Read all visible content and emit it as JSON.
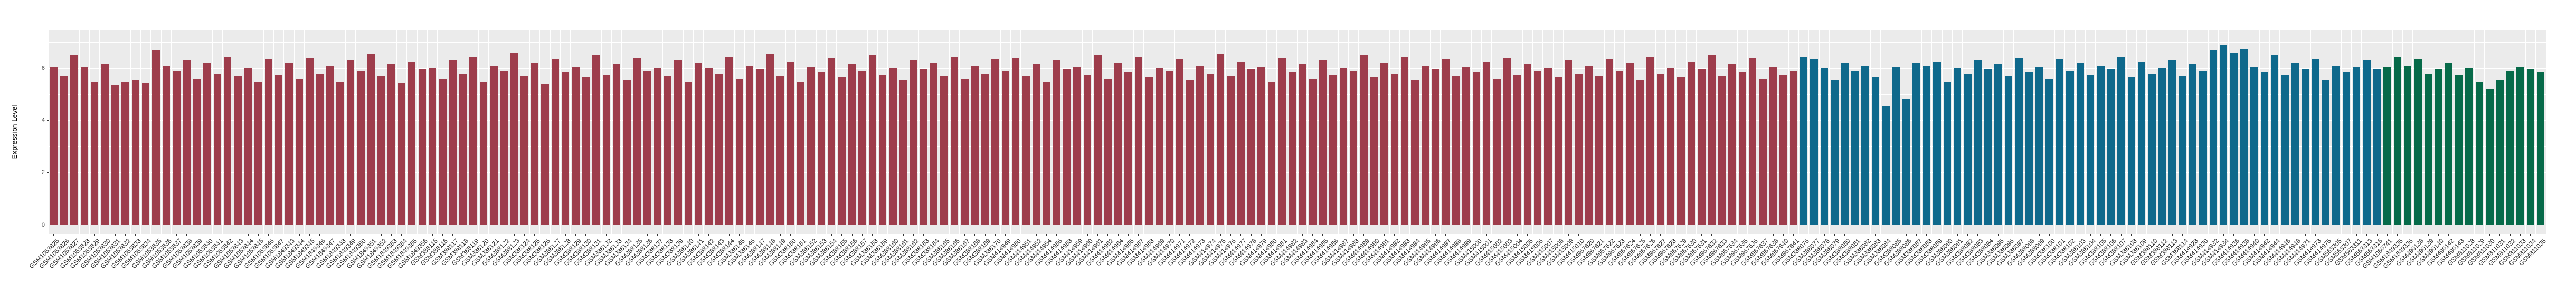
{
  "chart_data": {
    "type": "bar",
    "title": "",
    "xlabel": "",
    "ylabel": "Expression Level",
    "ylim": [
      -0.35,
      7.47
    ],
    "y_major_ticks": [
      0,
      2,
      4,
      6
    ],
    "y_minor_ticks": [
      1,
      3,
      5,
      7
    ],
    "legend": "none",
    "grid": "on",
    "panel_bg": "#ebebeb",
    "grid_color": "#ffffff",
    "groups": [
      {
        "name": "group-1-red",
        "color": "#9E3D4C",
        "from": 0,
        "to": 170
      },
      {
        "name": "group-2-blue",
        "color": "#0F698C",
        "from": 171,
        "to": 227
      },
      {
        "name": "group-3-green",
        "color": "#076A49",
        "from": 228,
        "to": 243
      }
    ],
    "categories": [
      "GSM1053825",
      "GSM1053826",
      "GSM1053827",
      "GSM1053828",
      "GSM1053829",
      "GSM1053830",
      "GSM1053831",
      "GSM1053832",
      "GSM1053833",
      "GSM1053834",
      "GSM1053835",
      "GSM1053836",
      "GSM1053837",
      "GSM1053838",
      "GSM1053839",
      "GSM1053840",
      "GSM1053841",
      "GSM1053842",
      "GSM1053843",
      "GSM1053844",
      "GSM1053845",
      "GSM1053846",
      "GSM1053847",
      "GSM1849343",
      "GSM1849344",
      "GSM1849345",
      "GSM1849346",
      "GSM1849347",
      "GSM1849348",
      "GSM1849349",
      "GSM1849350",
      "GSM1849351",
      "GSM1849352",
      "GSM1849353",
      "GSM1849354",
      "GSM1849355",
      "GSM1849356",
      "GSM388115",
      "GSM388116",
      "GSM388117",
      "GSM388118",
      "GSM388119",
      "GSM388120",
      "GSM388121",
      "GSM388122",
      "GSM388123",
      "GSM388124",
      "GSM388125",
      "GSM388126",
      "GSM388127",
      "GSM388128",
      "GSM388129",
      "GSM388130",
      "GSM388131",
      "GSM388132",
      "GSM388133",
      "GSM388134",
      "GSM388135",
      "GSM388136",
      "GSM388137",
      "GSM388138",
      "GSM388139",
      "GSM388140",
      "GSM388141",
      "GSM388142",
      "GSM388143",
      "GSM388144",
      "GSM388145",
      "GSM388146",
      "GSM388147",
      "GSM388148",
      "GSM388149",
      "GSM388150",
      "GSM388151",
      "GSM388152",
      "GSM388153",
      "GSM388154",
      "GSM388155",
      "GSM388156",
      "GSM388157",
      "GSM388158",
      "GSM388159",
      "GSM388160",
      "GSM388161",
      "GSM388162",
      "GSM388163",
      "GSM388164",
      "GSM388165",
      "GSM388166",
      "GSM388167",
      "GSM388168",
      "GSM388169",
      "GSM388170",
      "GSM414949",
      "GSM414950",
      "GSM414951",
      "GSM414952",
      "GSM414954",
      "GSM414956",
      "GSM414958",
      "GSM414959",
      "GSM414960",
      "GSM414961",
      "GSM414962",
      "GSM414964",
      "GSM414965",
      "GSM414967",
      "GSM414968",
      "GSM414969",
      "GSM414970",
      "GSM414971",
      "GSM414972",
      "GSM414973",
      "GSM414974",
      "GSM414975",
      "GSM414976",
      "GSM414977",
      "GSM414978",
      "GSM414979",
      "GSM414980",
      "GSM414981",
      "GSM414982",
      "GSM414983",
      "GSM414984",
      "GSM414985",
      "GSM414986",
      "GSM414987",
      "GSM414988",
      "GSM414989",
      "GSM414990",
      "GSM414991",
      "GSM414992",
      "GSM414993",
      "GSM414994",
      "GSM414995",
      "GSM414996",
      "GSM414997",
      "GSM414998",
      "GSM414999",
      "GSM415000",
      "GSM415001",
      "GSM415002",
      "GSM415003",
      "GSM415004",
      "GSM415005",
      "GSM415006",
      "GSM415007",
      "GSM415008",
      "GSM415009",
      "GSM415010",
      "GSM967620",
      "GSM967621",
      "GSM967622",
      "GSM967623",
      "GSM967624",
      "GSM967625",
      "GSM967626",
      "GSM967627",
      "GSM967628",
      "GSM967629",
      "GSM967630",
      "GSM967631",
      "GSM967632",
      "GSM967633",
      "GSM967634",
      "GSM967635",
      "GSM967636",
      "GSM967637",
      "GSM967638",
      "GSM967640",
      "GSM967641",
      "GSM388076",
      "GSM388077",
      "GSM388078",
      "GSM388079",
      "GSM388080",
      "GSM388081",
      "GSM388082",
      "GSM388083",
      "GSM388084",
      "GSM388085",
      "GSM388086",
      "GSM388087",
      "GSM388088",
      "GSM388089",
      "GSM388090",
      "GSM388091",
      "GSM388092",
      "GSM388093",
      "GSM388094",
      "GSM388095",
      "GSM388096",
      "GSM388097",
      "GSM388098",
      "GSM388099",
      "GSM388100",
      "GSM388101",
      "GSM388102",
      "GSM388103",
      "GSM388104",
      "GSM388105",
      "GSM388106",
      "GSM388107",
      "GSM388108",
      "GSM388109",
      "GSM388110",
      "GSM388112",
      "GSM388113",
      "GSM388114",
      "GSM414928",
      "GSM414930",
      "GSM414932",
      "GSM414934",
      "GSM414936",
      "GSM414938",
      "GSM414940",
      "GSM414942",
      "GSM414944",
      "GSM414946",
      "GSM414948",
      "GSM414971",
      "GSM414973",
      "GSM414975",
      "GSM563305",
      "GSM563307",
      "GSM563311",
      "GSM563313",
      "GSM563315",
      "GSM1060741",
      "GSM1849335",
      "GSM1849336",
      "GSM490138",
      "GSM490139",
      "GSM490140",
      "GSM490142",
      "GSM490143",
      "GSM811028",
      "GSM811029",
      "GSM811030",
      "GSM811031",
      "GSM811032",
      "GSM811033",
      "GSM811034",
      "GSM811035"
    ],
    "values": [
      6.05,
      5.7,
      6.5,
      6.05,
      5.5,
      6.15,
      5.35,
      5.5,
      5.55,
      5.45,
      6.7,
      6.1,
      5.9,
      6.3,
      5.6,
      6.2,
      5.8,
      6.45,
      5.7,
      6.0,
      5.5,
      6.35,
      5.75,
      6.2,
      5.6,
      6.4,
      5.8,
      6.1,
      5.5,
      6.3,
      5.9,
      6.55,
      5.7,
      6.15,
      5.45,
      6.25,
      5.95,
      6.0,
      5.6,
      6.3,
      5.8,
      6.45,
      5.5,
      6.1,
      5.9,
      6.6,
      5.7,
      6.2,
      5.4,
      6.35,
      5.85,
      6.05,
      5.65,
      6.5,
      5.75,
      6.15,
      5.55,
      6.4,
      5.9,
      6.0,
      5.7,
      6.3,
      5.5,
      6.2,
      6.0,
      5.8,
      6.45,
      5.6,
      6.1,
      5.95,
      6.55,
      5.7,
      6.25,
      5.5,
      6.05,
      5.85,
      6.4,
      5.65,
      6.15,
      5.9,
      6.5,
      5.75,
      6.0,
      5.55,
      6.3,
      5.95,
      6.2,
      5.7,
      6.45,
      5.6,
      6.1,
      5.8,
      6.35,
      5.9,
      6.4,
      5.7,
      6.15,
      5.5,
      6.3,
      5.95,
      6.05,
      5.75,
      6.5,
      5.6,
      6.2,
      5.85,
      6.45,
      5.65,
      6.0,
      5.9,
      6.35,
      5.55,
      6.1,
      5.8,
      6.55,
      5.7,
      6.25,
      5.95,
      6.05,
      5.5,
      6.4,
      5.85,
      6.15,
      5.6,
      6.3,
      5.75,
      6.0,
      5.9,
      6.5,
      5.65,
      6.2,
      5.8,
      6.45,
      5.55,
      6.1,
      5.95,
      6.35,
      5.7,
      6.05,
      5.85,
      6.25,
      5.6,
      6.4,
      5.75,
      6.15,
      5.9,
      6.0,
      5.65,
      6.3,
      5.8,
      6.1,
      5.7,
      6.35,
      5.9,
      6.2,
      5.55,
      6.45,
      5.8,
      6.0,
      5.65,
      6.25,
      5.95,
      6.5,
      5.7,
      6.15,
      5.85,
      6.4,
      5.6,
      6.05,
      5.75,
      5.9,
      6.45,
      6.35,
      6.0,
      5.55,
      6.2,
      5.9,
      6.1,
      5.65,
      4.55,
      6.05,
      4.8,
      6.2,
      6.1,
      6.25,
      5.5,
      6.0,
      5.8,
      6.3,
      5.95,
      6.15,
      5.7,
      6.4,
      5.85,
      6.05,
      5.6,
      6.35,
      5.9,
      6.2,
      5.75,
      6.1,
      5.95,
      6.45,
      5.65,
      6.25,
      5.8,
      6.0,
      6.3,
      5.7,
      6.15,
      5.9,
      6.7,
      6.9,
      6.6,
      6.75,
      6.05,
      5.85,
      6.5,
      5.75,
      6.2,
      5.95,
      6.35,
      5.55,
      6.1,
      5.85,
      6.05,
      6.3,
      5.95,
      6.05,
      6.45,
      6.1,
      6.35,
      5.8,
      5.95,
      6.2,
      5.75,
      6.0,
      5.5,
      5.2,
      5.55,
      5.9,
      6.05,
      5.95,
      5.85
    ]
  }
}
